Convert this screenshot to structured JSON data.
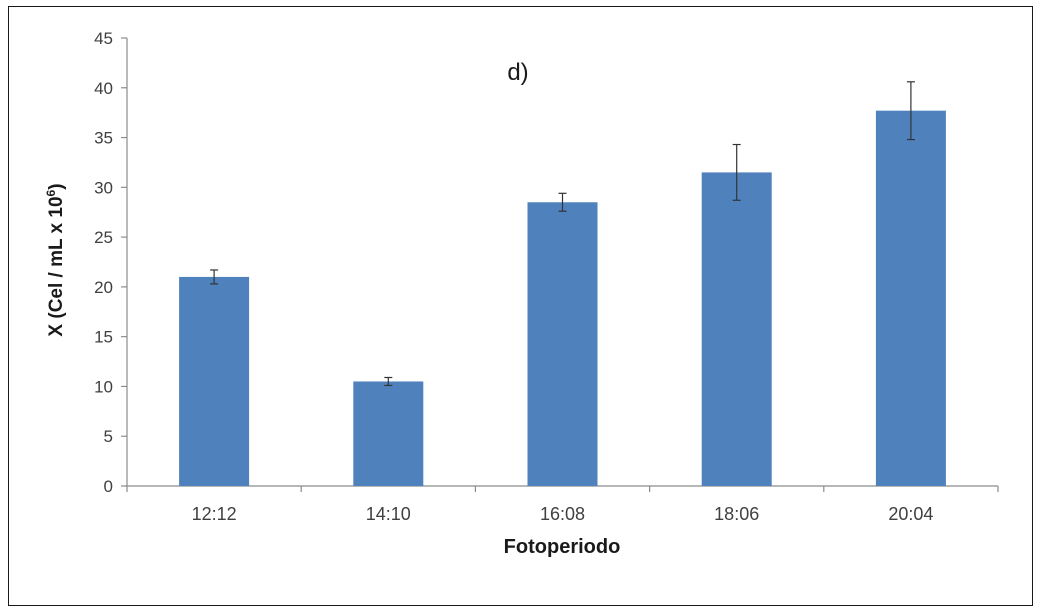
{
  "chart_data": {
    "type": "bar",
    "panel_label": "d)",
    "categories": [
      "12:12",
      "14:10",
      "16:08",
      "18:06",
      "20:04"
    ],
    "values": [
      21.0,
      10.5,
      28.5,
      31.5,
      37.7
    ],
    "errors": [
      0.7,
      0.4,
      0.9,
      2.8,
      2.9
    ],
    "xlabel": "Fotoperiodo",
    "ylabel_text": "X  (Cel / mL x 10",
    "ylabel_sup": "6",
    "ylabel_close": ")",
    "ylim": [
      0,
      45
    ],
    "yticks": [
      0,
      5,
      10,
      15,
      20,
      25,
      30,
      35,
      40,
      45
    ],
    "bar_color": "#4f81bd",
    "grid": false,
    "legend": "none"
  }
}
